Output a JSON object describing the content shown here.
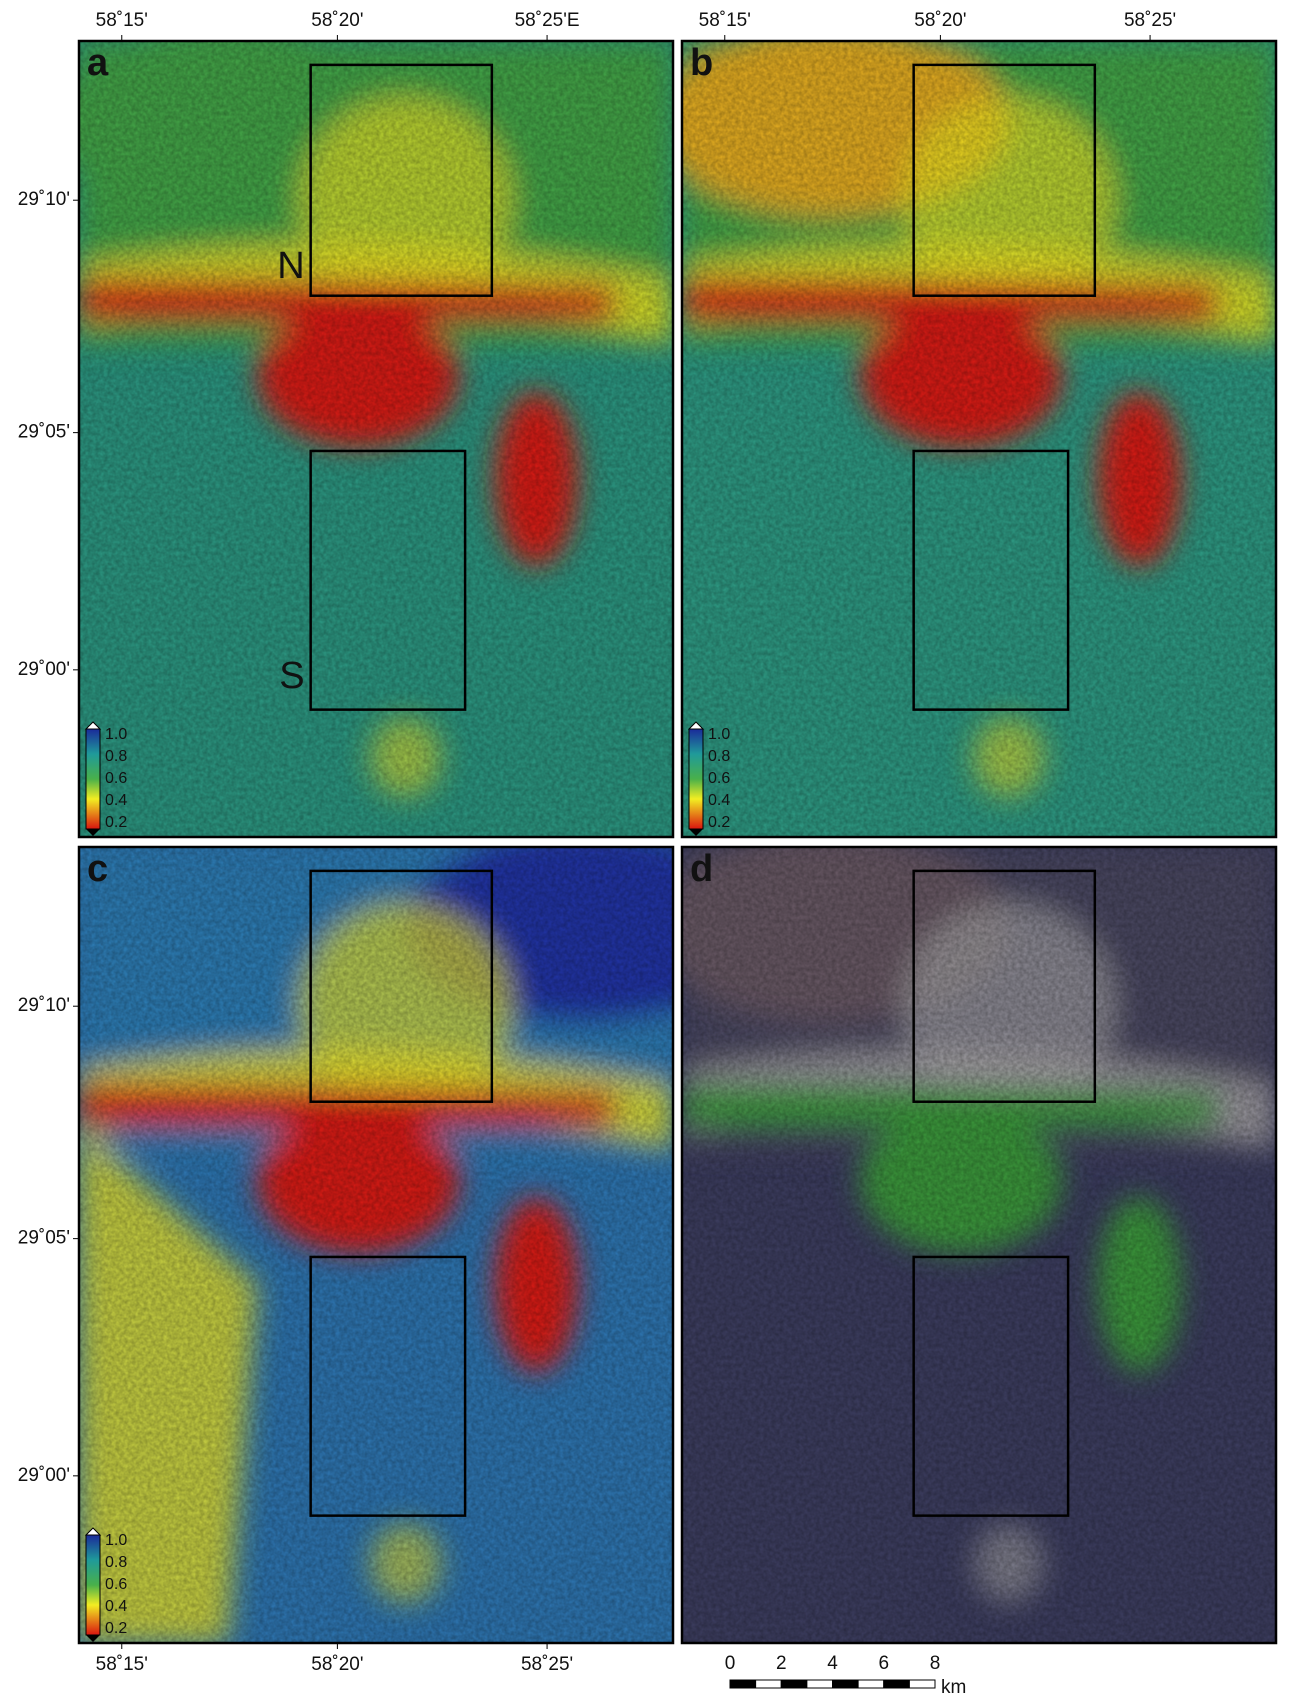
{
  "panels": [
    {
      "label": "a",
      "top_ticks": [
        "58˚15'",
        "58˚20'",
        "58˚25'E"
      ],
      "left_ticks": [
        "29˚10'",
        "29˚05'",
        "29˚00'"
      ],
      "colorbar": [
        "1.0",
        "0.8",
        "0.6",
        "0.4",
        "0.2"
      ],
      "box_labels": [
        "N",
        "S"
      ]
    },
    {
      "label": "b",
      "top_ticks": [
        "58˚15'",
        "58˚20'",
        "58˚25'"
      ],
      "colorbar": [
        "1.0",
        "0.8",
        "0.6",
        "0.4",
        "0.2"
      ]
    },
    {
      "label": "c",
      "left_ticks": [
        "29˚10'",
        "29˚05'",
        "29˚00'"
      ],
      "bottom_ticks": [
        "58˚15'",
        "58˚20'",
        "58˚25'"
      ],
      "colorbar": [
        "1.0",
        "0.8",
        "0.6",
        "0.4",
        "0.2"
      ]
    },
    {
      "label": "d"
    }
  ],
  "scale_bar": {
    "ticks": [
      "0",
      "2",
      "4",
      "6",
      "8"
    ],
    "unit": "km"
  }
}
